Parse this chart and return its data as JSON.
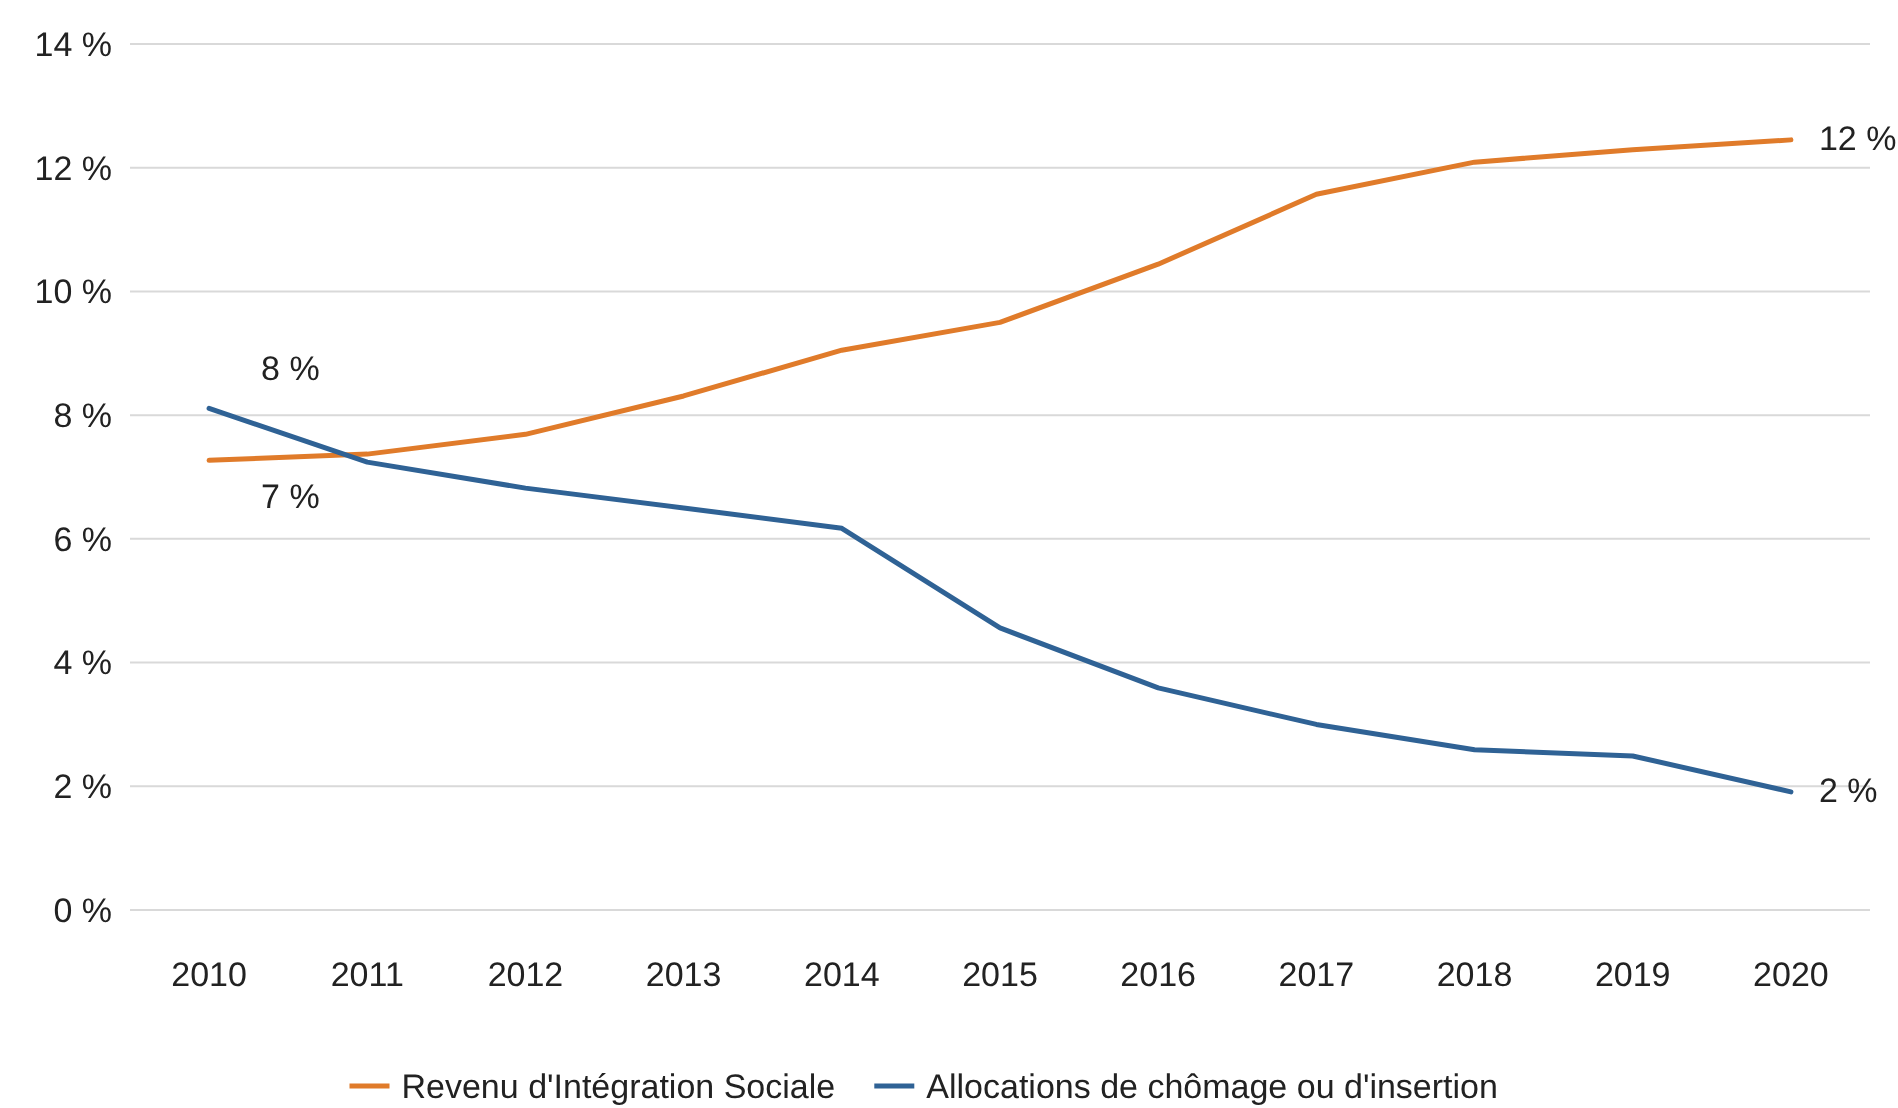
{
  "chart_data": {
    "type": "line",
    "categories": [
      "2010",
      "2011",
      "2012",
      "2013",
      "2014",
      "2015",
      "2016",
      "2017",
      "2018",
      "2019",
      "2020"
    ],
    "series": [
      {
        "name": "Revenu d'Intégration Sociale",
        "color": "#e07b2a",
        "values": [
          7.27,
          7.37,
          7.69,
          8.31,
          9.05,
          9.5,
          10.44,
          11.57,
          12.09,
          12.29,
          12.45
        ]
      },
      {
        "name": "Allocations de chômage ou d'insertion",
        "color": "#2f6295",
        "values": [
          8.11,
          7.24,
          6.82,
          6.5,
          6.17,
          4.56,
          3.59,
          3.0,
          2.59,
          2.49,
          1.91
        ]
      }
    ],
    "ylim": [
      0,
      14
    ],
    "yticks": [
      {
        "value": 0,
        "label": "0 %"
      },
      {
        "value": 2,
        "label": "2 %"
      },
      {
        "value": 4,
        "label": "4 %"
      },
      {
        "value": 6,
        "label": "6 %"
      },
      {
        "value": 8,
        "label": "8 %"
      },
      {
        "value": 10,
        "label": "10 %"
      },
      {
        "value": 12,
        "label": "12 %"
      },
      {
        "value": 14,
        "label": "14 %"
      }
    ],
    "grid": "y",
    "legend": "bottom",
    "marker": "none",
    "line_style": "solid",
    "annotations": [
      {
        "text": "8 %",
        "x": "2010",
        "y": 8.11
      },
      {
        "text": "7 %",
        "x": "2010",
        "y": 7.27
      },
      {
        "text": "12 %",
        "x": "2020",
        "y": 12.45
      },
      {
        "text": "2 %",
        "x": "2020",
        "y": 1.91
      }
    ]
  }
}
